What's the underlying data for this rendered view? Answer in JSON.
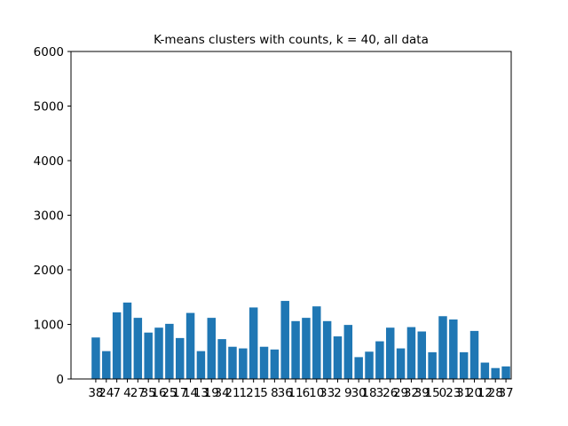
{
  "chart_data": {
    "type": "bar",
    "title": "K-means clusters with counts, k = 40, all data",
    "xlabel": "",
    "ylabel": "",
    "ylim": [
      0,
      6000
    ],
    "yticks": [
      0,
      1000,
      2000,
      3000,
      4000,
      5000,
      6000
    ],
    "grid": false,
    "bar_color": "#1f77b4",
    "categories": [
      "38",
      "24",
      "7",
      "4",
      "27",
      "35",
      "16",
      "25",
      "17",
      "14",
      "13",
      "19",
      "34",
      "21",
      "1",
      "21",
      "5",
      "8",
      "36",
      "11",
      "6",
      "10",
      "33",
      "2",
      "9",
      "30",
      "18",
      "3",
      "26",
      "29",
      "32",
      "39",
      "15",
      "0",
      "23",
      "31",
      "20",
      "12",
      "28",
      "37"
    ],
    "values": [
      760,
      510,
      1220,
      1400,
      1120,
      850,
      940,
      1010,
      750,
      1210,
      510,
      1120,
      730,
      590,
      560,
      1310,
      590,
      540,
      1430,
      1060,
      1120,
      1330,
      1060,
      780,
      990,
      400,
      500,
      690,
      940,
      560,
      950,
      870,
      490,
      1150,
      1090,
      490,
      880,
      300,
      200,
      230
    ]
  }
}
